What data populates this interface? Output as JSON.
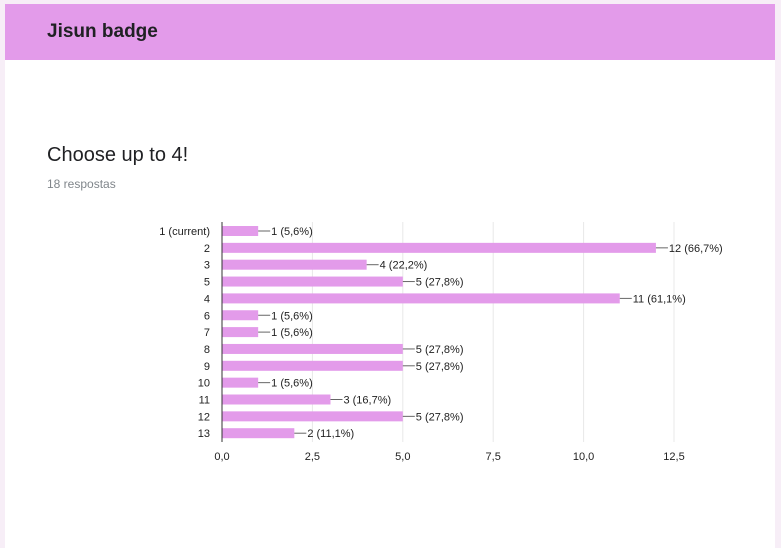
{
  "header": {
    "title": "Jisun badge"
  },
  "question": {
    "title": "Choose up to 4!",
    "responses": "18 respostas"
  },
  "colors": {
    "header_bg": "#e39bea",
    "bar": "#e39bea",
    "axis": "#333333",
    "grid": "#e8e8e8"
  },
  "chart_data": {
    "type": "bar",
    "orientation": "horizontal",
    "categories": [
      "1 (current)",
      "2",
      "3",
      "5",
      "4",
      "6",
      "7",
      "8",
      "9",
      "10",
      "11",
      "12",
      "13"
    ],
    "values": [
      1,
      12,
      4,
      5,
      11,
      1,
      1,
      5,
      5,
      1,
      3,
      5,
      2
    ],
    "value_labels": [
      "1 (5,6%)",
      "12 (66,7%)",
      "4 (22,2%)",
      "5 (27,8%)",
      "11 (61,1%)",
      "1 (5,6%)",
      "1 (5,6%)",
      "5 (27,8%)",
      "5 (27,8%)",
      "1 (5,6%)",
      "3 (16,7%)",
      "5 (27,8%)",
      "2 (11,1%)"
    ],
    "x_ticks": [
      "0,0",
      "2,5",
      "5,0",
      "7,5",
      "10,0",
      "12,5"
    ],
    "x_tick_values": [
      0,
      2.5,
      5,
      7.5,
      10,
      12.5
    ],
    "xlim": [
      0,
      12.5
    ],
    "title": "",
    "xlabel": "",
    "ylabel": "",
    "grid": true,
    "legend": "none"
  }
}
